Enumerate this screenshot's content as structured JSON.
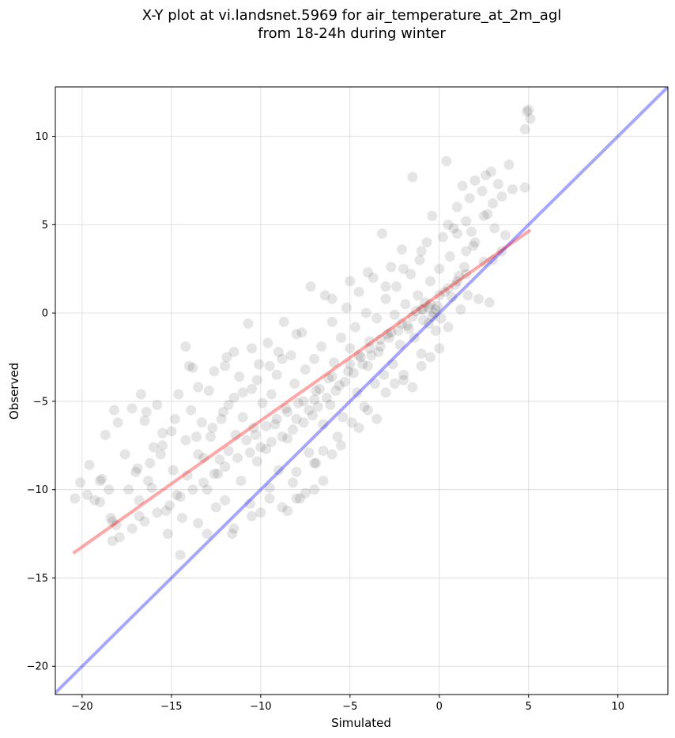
{
  "chart_data": {
    "type": "scatter",
    "title_lines": [
      "X-Y plot at vi.landsnet.5969 for air_temperature_at_2m_agl",
      "from 18-24h during winter"
    ],
    "xlabel": "Simulated",
    "ylabel": "Observed",
    "xlim": [
      -21.5,
      12.8
    ],
    "ylim": [
      -21.6,
      12.8
    ],
    "x_ticks": [
      -20,
      -15,
      -10,
      -5,
      0,
      5,
      10
    ],
    "y_ticks": [
      -20,
      -15,
      -10,
      -5,
      0,
      5,
      10
    ],
    "x_tick_labels": [
      "−20",
      "−15",
      "−10",
      "−5",
      "0",
      "5",
      "10"
    ],
    "y_tick_labels": [
      "−20",
      "−15",
      "−10",
      "−5",
      "0",
      "5",
      "10"
    ],
    "grid": true,
    "colors": {
      "points": "#000000",
      "regression_line": "#ff0000",
      "identity_line": "#0000ff",
      "grid": "#d9d9d9"
    },
    "points_alpha": 0.1,
    "regression_line": {
      "x": [
        -20.5,
        5.1
      ],
      "y": [
        -13.6,
        4.7
      ]
    },
    "identity_line": {
      "x": [
        -21.6,
        12.8
      ],
      "y": [
        -21.6,
        12.8
      ]
    },
    "points": [
      [
        -20.4,
        -10.5
      ],
      [
        -20.1,
        -9.6
      ],
      [
        -19.7,
        -10.3
      ],
      [
        -19.3,
        -10.6
      ],
      [
        -19.6,
        -8.6
      ],
      [
        -19.0,
        -10.7
      ],
      [
        -18.9,
        -9.4
      ],
      [
        -18.7,
        -6.9
      ],
      [
        -18.4,
        -11.6
      ],
      [
        -18.3,
        -11.8
      ],
      [
        -18.2,
        -5.5
      ],
      [
        -18.1,
        -12.0
      ],
      [
        -18.0,
        -6.2
      ],
      [
        -17.6,
        -8.0
      ],
      [
        -17.4,
        -10.0
      ],
      [
        -17.2,
        -5.4
      ],
      [
        -16.9,
        -8.8
      ],
      [
        -16.8,
        -10.6
      ],
      [
        -16.8,
        -11.5
      ],
      [
        -16.7,
        -4.6
      ],
      [
        -16.5,
        -6.1
      ],
      [
        -16.4,
        -5.6
      ],
      [
        -16.3,
        -9.5
      ],
      [
        -16.1,
        -9.9
      ],
      [
        -16.0,
        -7.6
      ],
      [
        -15.8,
        -5.2
      ],
      [
        -15.6,
        -8.0
      ],
      [
        -15.5,
        -6.8
      ],
      [
        -15.3,
        -11.2
      ],
      [
        -15.2,
        -12.5
      ],
      [
        -15.0,
        -6.7
      ],
      [
        -14.9,
        -8.9
      ],
      [
        -14.7,
        -10.3
      ],
      [
        -14.6,
        -4.6
      ],
      [
        -14.5,
        -13.7
      ],
      [
        -14.4,
        -11.6
      ],
      [
        -14.2,
        -1.9
      ],
      [
        -14.1,
        -9.2
      ],
      [
        -13.9,
        -5.5
      ],
      [
        -13.8,
        -3.1
      ],
      [
        -13.6,
        -7.0
      ],
      [
        -13.5,
        -11.9
      ],
      [
        -13.3,
        -6.2
      ],
      [
        -13.2,
        -8.2
      ],
      [
        -13.0,
        -10.0
      ],
      [
        -12.9,
        -4.4
      ],
      [
        -12.7,
        -6.5
      ],
      [
        -12.6,
        -3.3
      ],
      [
        -12.4,
        -9.1
      ],
      [
        -12.3,
        -8.3
      ],
      [
        -12.1,
        -5.6
      ],
      [
        -12.0,
        -10.6
      ],
      [
        -11.9,
        -2.5
      ],
      [
        -11.8,
        -7.8
      ],
      [
        -11.6,
        -12.5
      ],
      [
        -11.5,
        -4.8
      ],
      [
        -11.4,
        -6.9
      ],
      [
        -11.2,
        -3.6
      ],
      [
        -11.1,
        -9.5
      ],
      [
        -11.0,
        -5.9
      ],
      [
        -10.8,
        -7.2
      ],
      [
        -10.7,
        -0.6
      ],
      [
        -10.6,
        -10.8
      ],
      [
        -10.5,
        -4.3
      ],
      [
        -10.4,
        -6.5
      ],
      [
        -10.2,
        -8.4
      ],
      [
        -10.1,
        -2.9
      ],
      [
        -10.0,
        -11.3
      ],
      [
        -9.9,
        -5.1
      ],
      [
        -9.7,
        -7.7
      ],
      [
        -9.6,
        -1.7
      ],
      [
        -9.5,
        -9.9
      ],
      [
        -9.4,
        -4.6
      ],
      [
        -9.2,
        -6.3
      ],
      [
        -9.1,
        -3.5
      ],
      [
        -9.0,
        -8.9
      ],
      [
        -8.8,
        -11.0
      ],
      [
        -8.7,
        -0.5
      ],
      [
        -8.6,
        -5.4
      ],
      [
        -8.5,
        -7.1
      ],
      [
        -8.3,
        -2.4
      ],
      [
        -8.2,
        -9.6
      ],
      [
        -8.1,
        -4.0
      ],
      [
        -8.0,
        -6.0
      ],
      [
        -7.8,
        -10.5
      ],
      [
        -7.7,
        -1.1
      ],
      [
        -7.6,
        -5.0
      ],
      [
        -7.5,
        -3.2
      ],
      [
        -7.3,
        -7.9
      ],
      [
        -7.2,
        1.5
      ],
      [
        -7.1,
        -5.8
      ],
      [
        -7.0,
        -2.6
      ],
      [
        -6.9,
        -8.5
      ],
      [
        -6.7,
        -4.3
      ],
      [
        -6.6,
        -1.9
      ],
      [
        -6.5,
        -6.3
      ],
      [
        -6.4,
        1.0
      ],
      [
        -6.2,
        -3.7
      ],
      [
        -6.1,
        -5.2
      ],
      [
        -6.0,
        -0.5
      ],
      [
        -5.9,
        -2.8
      ],
      [
        -5.7,
        -7.0
      ],
      [
        -5.6,
        -4.1
      ],
      [
        -5.5,
        -1.4
      ],
      [
        -5.4,
        -5.9
      ],
      [
        -5.2,
        0.3
      ],
      [
        -5.1,
        -3.3
      ],
      [
        -5.0,
        -2.0
      ],
      [
        -4.9,
        -6.2
      ],
      [
        -4.7,
        -0.8
      ],
      [
        -4.6,
        -4.5
      ],
      [
        -4.5,
        1.2
      ],
      [
        -4.4,
        -2.5
      ],
      [
        -4.2,
        -5.3
      ],
      [
        -4.1,
        0.0
      ],
      [
        -4.0,
        -3.0
      ],
      [
        -3.9,
        -1.6
      ],
      [
        -3.7,
        2.0
      ],
      [
        -3.6,
        -4.0
      ],
      [
        -3.5,
        -0.3
      ],
      [
        -3.4,
        -2.2
      ],
      [
        -3.2,
        4.5
      ],
      [
        -3.1,
        -3.5
      ],
      [
        -3.0,
        0.8
      ],
      [
        -2.9,
        -1.2
      ],
      [
        -2.7,
        2.6
      ],
      [
        -2.6,
        -2.9
      ],
      [
        -2.5,
        -0.1
      ],
      [
        -2.4,
        1.5
      ],
      [
        -2.2,
        -1.8
      ],
      [
        -2.1,
        3.6
      ],
      [
        -2.0,
        -3.8
      ],
      [
        -1.9,
        0.5
      ],
      [
        -1.7,
        -0.9
      ],
      [
        -1.6,
        2.2
      ],
      [
        -1.5,
        7.7
      ],
      [
        -1.4,
        -1.4
      ],
      [
        -1.2,
        1.0
      ],
      [
        -1.1,
        3.0
      ],
      [
        -1.0,
        -2.3
      ],
      [
        -0.9,
        0.2
      ],
      [
        -0.7,
        4.0
      ],
      [
        -0.6,
        -0.6
      ],
      [
        -0.5,
        1.8
      ],
      [
        -0.4,
        5.5
      ],
      [
        -0.2,
        -1.0
      ],
      [
        -0.1,
        0.4
      ],
      [
        0.0,
        2.5
      ],
      [
        0.1,
        -0.3
      ],
      [
        0.2,
        4.3
      ],
      [
        0.3,
        1.2
      ],
      [
        0.4,
        8.6
      ],
      [
        0.5,
        -0.8
      ],
      [
        0.6,
        3.2
      ],
      [
        0.7,
        0.9
      ],
      [
        0.8,
        4.8
      ],
      [
        0.9,
        1.6
      ],
      [
        1.0,
        6.0
      ],
      [
        1.1,
        2.1
      ],
      [
        1.2,
        0.2
      ],
      [
        1.3,
        7.2
      ],
      [
        1.4,
        2.6
      ],
      [
        1.5,
        5.2
      ],
      [
        1.6,
        1.0
      ],
      [
        1.7,
        6.5
      ],
      [
        1.8,
        4.6
      ],
      [
        1.9,
        3.8
      ],
      [
        2.0,
        7.5
      ],
      [
        2.2,
        0.8
      ],
      [
        2.4,
        6.9
      ],
      [
        2.5,
        2.9
      ],
      [
        2.6,
        7.8
      ],
      [
        2.7,
        5.6
      ],
      [
        2.8,
        0.6
      ],
      [
        2.9,
        8.0
      ],
      [
        3.0,
        6.2
      ],
      [
        3.1,
        4.8
      ],
      [
        3.3,
        7.3
      ],
      [
        3.5,
        6.6
      ],
      [
        3.7,
        4.4
      ],
      [
        3.9,
        8.4
      ],
      [
        4.1,
        7.0
      ],
      [
        4.8,
        10.4
      ],
      [
        4.9,
        11.4
      ],
      [
        5.0,
        11.5
      ],
      [
        5.1,
        11.0
      ],
      [
        4.8,
        7.1
      ],
      [
        -0.3,
        0.0
      ],
      [
        -0.6,
        0.3
      ],
      [
        -0.9,
        -0.4
      ],
      [
        -1.3,
        0.1
      ],
      [
        -0.4,
        -0.2
      ],
      [
        -0.2,
        0.2
      ],
      [
        -0.8,
        0.6
      ],
      [
        -1.8,
        -0.7
      ],
      [
        -2.3,
        -1.0
      ],
      [
        -2.8,
        -1.4
      ],
      [
        -3.3,
        -1.9
      ],
      [
        -3.8,
        -2.4
      ],
      [
        -4.3,
        -2.9
      ],
      [
        -4.8,
        -3.4
      ],
      [
        -5.3,
        -3.9
      ],
      [
        -5.8,
        -4.4
      ],
      [
        -6.3,
        -4.8
      ],
      [
        -6.8,
        -5.3
      ],
      [
        -7.3,
        -5.5
      ],
      [
        -7.0,
        -4.9
      ],
      [
        -7.6,
        -6.2
      ],
      [
        -8.2,
        -6.6
      ],
      [
        -8.8,
        -7.0
      ],
      [
        -9.4,
        -7.3
      ],
      [
        -10.0,
        -7.6
      ],
      [
        -10.6,
        -7.9
      ],
      [
        -11.3,
        -8.2
      ],
      [
        -10.3,
        -6.9
      ],
      [
        -9.7,
        -6.4
      ],
      [
        -9.1,
        -6.0
      ],
      [
        -8.5,
        -5.6
      ],
      [
        -7.9,
        -5.1
      ],
      [
        -6.9,
        -4.4
      ],
      [
        -6.0,
        -3.6
      ],
      [
        -5.0,
        -2.9
      ],
      [
        -4.5,
        -2.4
      ],
      [
        -3.9,
        -2.0
      ],
      [
        -3.3,
        -1.5
      ],
      [
        -2.7,
        -1.1
      ],
      [
        -2.1,
        -0.6
      ],
      [
        -1.5,
        -0.2
      ],
      [
        -1.0,
        0.2
      ],
      [
        -0.5,
        0.5
      ],
      [
        0.0,
        1.0
      ],
      [
        0.5,
        1.4
      ],
      [
        1.0,
        1.8
      ],
      [
        1.5,
        2.2
      ],
      [
        -12.0,
        -8.7
      ],
      [
        -12.6,
        -9.1
      ],
      [
        -13.2,
        -9.6
      ],
      [
        -13.8,
        -10.0
      ],
      [
        -14.5,
        -10.4
      ],
      [
        -15.1,
        -10.9
      ],
      [
        -15.8,
        -11.3
      ],
      [
        -16.5,
        -11.8
      ],
      [
        -17.2,
        -12.2
      ],
      [
        -17.9,
        -12.7
      ],
      [
        -18.3,
        -12.9
      ],
      [
        -9.0,
        -2.2
      ],
      [
        -8.0,
        -1.2
      ],
      [
        -6.0,
        0.8
      ],
      [
        -5.0,
        1.8
      ],
      [
        -4.0,
        2.3
      ],
      [
        -12.0,
        -3.0
      ],
      [
        -11.5,
        -2.2
      ],
      [
        -10.5,
        -2.0
      ],
      [
        -13.5,
        -4.2
      ],
      [
        -14.0,
        -3.0
      ],
      [
        -8.0,
        -9.0
      ],
      [
        -7.0,
        -8.5
      ],
      [
        -6.5,
        -7.8
      ],
      [
        -9.5,
        -10.5
      ],
      [
        -10.5,
        -11.5
      ],
      [
        -11.5,
        -12.2
      ],
      [
        -12.5,
        -11.0
      ],
      [
        -13.0,
        -12.5
      ],
      [
        -7.5,
        -10.2
      ],
      [
        -8.5,
        -11.2
      ],
      [
        -3.0,
        -4.5
      ],
      [
        -2.5,
        -4.0
      ],
      [
        -2.0,
        -3.5
      ],
      [
        -1.5,
        -4.2
      ],
      [
        -1.0,
        -3.0
      ],
      [
        -0.5,
        -2.5
      ],
      [
        0.0,
        -2.0
      ],
      [
        -4.0,
        -5.5
      ],
      [
        -3.5,
        -6.0
      ],
      [
        -4.5,
        -6.5
      ],
      [
        -5.5,
        -7.5
      ],
      [
        -6.0,
        -8.0
      ],
      [
        -6.5,
        -9.5
      ],
      [
        -7.0,
        -10.0
      ],
      [
        -8.0,
        -10.5
      ],
      [
        1.5,
        3.5
      ],
      [
        2.0,
        4.0
      ],
      [
        1.0,
        4.5
      ],
      [
        0.5,
        5.0
      ],
      [
        2.5,
        5.5
      ],
      [
        3.0,
        3.0
      ],
      [
        3.5,
        3.5
      ],
      [
        -1.0,
        3.5
      ],
      [
        -2.0,
        2.5
      ],
      [
        -3.0,
        1.5
      ],
      [
        -15.5,
        -7.5
      ],
      [
        -16.2,
        -8.5
      ],
      [
        -17.0,
        -9.0
      ],
      [
        -14.8,
        -6.0
      ],
      [
        -14.2,
        -7.2
      ],
      [
        -13.5,
        -8.0
      ],
      [
        -12.8,
        -7.0
      ],
      [
        -12.2,
        -6.0
      ],
      [
        -11.8,
        -5.2
      ],
      [
        -11.0,
        -4.5
      ],
      [
        -10.2,
        -3.8
      ],
      [
        -9.5,
        -3.0
      ],
      [
        -8.8,
        -2.6
      ],
      [
        -19.0,
        -9.5
      ],
      [
        -18.5,
        -10.0
      ]
    ]
  }
}
